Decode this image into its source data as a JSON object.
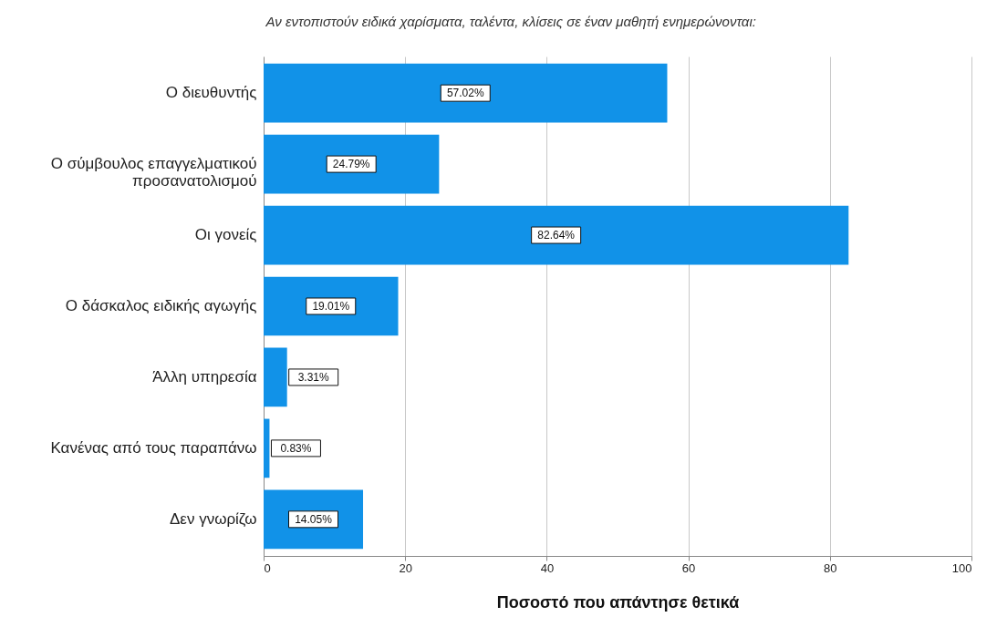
{
  "chart_data": {
    "type": "bar",
    "orientation": "horizontal",
    "title": "Αν εντοπιστούν ειδικά χαρίσματα, ταλέντα, κλίσεις σε έναν μαθητή ενημερώνονται:",
    "xlabel": "Ποσοστό που απάντησε θετικά",
    "categories": [
      "Ο διευθυντής",
      "Ο σύμβουλος επαγγελματικού προσανατολισμού",
      "Οι γονείς",
      "Ο δάσκαλος ειδικής αγωγής",
      "Άλλη υπηρεσία",
      "Κανένας από τους παραπάνω",
      "Δεν γνωρίζω"
    ],
    "values": [
      57.02,
      24.79,
      82.64,
      19.01,
      3.31,
      0.83,
      14.05
    ],
    "value_labels": [
      "57.02%",
      "24.79%",
      "82.64%",
      "19.01%",
      "3.31%",
      "0.83%",
      "14.05%"
    ],
    "color": "#1192e8",
    "xlim": [
      0,
      100
    ],
    "xticks": [
      0,
      20,
      40,
      60,
      80,
      100
    ],
    "grid": "x"
  }
}
